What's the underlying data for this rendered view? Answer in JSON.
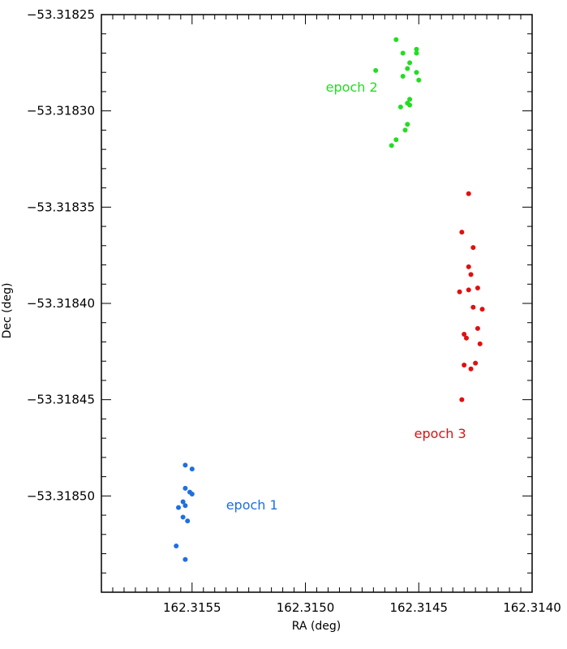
{
  "chart_data": {
    "type": "scatter",
    "title": "",
    "xlabel": "RA (deg)",
    "ylabel": "Dec (deg)",
    "xlim": [
      162.3159,
      162.314
    ],
    "ylim": [
      -53.31855,
      -53.31825
    ],
    "x_reversed": true,
    "x_ticks": [
      162.3155,
      162.315,
      162.3145,
      162.314
    ],
    "x_tick_labels": [
      "162.3155",
      "162.3150",
      "162.3145",
      "162.3140"
    ],
    "y_ticks": [
      -53.31825,
      -53.3183,
      -53.31835,
      -53.3184,
      -53.31845,
      -53.3185
    ],
    "y_tick_labels": [
      "−53.31825",
      "−53.31830",
      "−53.31835",
      "−53.31840",
      "−53.31845",
      "−53.31850"
    ],
    "grid": false,
    "legend": "none",
    "annotations": [
      {
        "text": "epoch 1",
        "x": 162.31535,
        "y": -53.318507,
        "color": "#1f6fe0"
      },
      {
        "text": "epoch 2",
        "x": 162.31491,
        "y": -53.31829,
        "color": "#22dd22"
      },
      {
        "text": "epoch 3",
        "x": 162.31452,
        "y": -53.31847,
        "color": "#e01010"
      }
    ],
    "series": [
      {
        "color": "#1f6fe0",
        "points": [
          [
            162.31553,
            -53.318484
          ],
          [
            162.3155,
            -53.318486
          ],
          [
            162.31553,
            -53.318496
          ],
          [
            162.31551,
            -53.318498
          ],
          [
            162.3155,
            -53.318499
          ],
          [
            162.31554,
            -53.318503
          ],
          [
            162.31553,
            -53.318505
          ],
          [
            162.31556,
            -53.318506
          ],
          [
            162.31554,
            -53.318511
          ],
          [
            162.31552,
            -53.318513
          ],
          [
            162.31557,
            -53.318526
          ],
          [
            162.31553,
            -53.318533
          ]
        ]
      },
      {
        "color": "#22dd22",
        "points": [
          [
            162.3146,
            -53.318263
          ],
          [
            162.31451,
            -53.318268
          ],
          [
            162.31451,
            -53.31827
          ],
          [
            162.31457,
            -53.31827
          ],
          [
            162.31454,
            -53.318275
          ],
          [
            162.31455,
            -53.318278
          ],
          [
            162.31469,
            -53.318279
          ],
          [
            162.31451,
            -53.31828
          ],
          [
            162.31457,
            -53.318282
          ],
          [
            162.3145,
            -53.318284
          ],
          [
            162.31454,
            -53.318294
          ],
          [
            162.31455,
            -53.318296
          ],
          [
            162.31454,
            -53.318297
          ],
          [
            162.31458,
            -53.318298
          ],
          [
            162.31455,
            -53.318307
          ],
          [
            162.31456,
            -53.31831
          ],
          [
            162.3146,
            -53.318315
          ],
          [
            162.31462,
            -53.318318
          ]
        ]
      },
      {
        "color": "#e01010",
        "points": [
          [
            162.31428,
            -53.318343
          ],
          [
            162.31431,
            -53.318363
          ],
          [
            162.31426,
            -53.318371
          ],
          [
            162.31428,
            -53.318381
          ],
          [
            162.31427,
            -53.318385
          ],
          [
            162.31424,
            -53.318392
          ],
          [
            162.31428,
            -53.318393
          ],
          [
            162.31432,
            -53.318394
          ],
          [
            162.31426,
            -53.318402
          ],
          [
            162.31422,
            -53.318403
          ],
          [
            162.31424,
            -53.318413
          ],
          [
            162.3143,
            -53.318416
          ],
          [
            162.31429,
            -53.318418
          ],
          [
            162.31423,
            -53.318421
          ],
          [
            162.31425,
            -53.318431
          ],
          [
            162.3143,
            -53.318432
          ],
          [
            162.31427,
            -53.318434
          ],
          [
            162.31431,
            -53.31845
          ]
        ]
      }
    ]
  }
}
